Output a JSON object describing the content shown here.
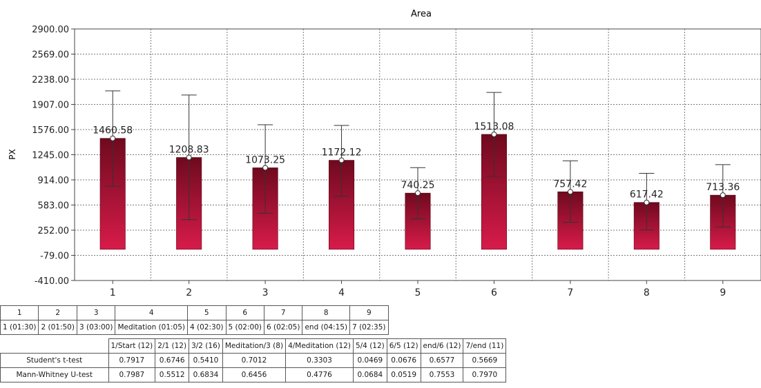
{
  "chart_data": {
    "type": "bar",
    "title": "Area",
    "ylabel": "PX",
    "xlabel": "",
    "categories": [
      "1",
      "2",
      "3",
      "4",
      "5",
      "6",
      "7",
      "8",
      "9"
    ],
    "values": [
      1460.58,
      1208.83,
      1073.25,
      1172.12,
      740.25,
      1513.08,
      757.42,
      617.42,
      713.36
    ],
    "error_low": [
      830,
      390,
      475,
      700,
      400,
      960,
      355,
      255,
      295
    ],
    "error_high": [
      2085,
      2030,
      1640,
      1630,
      1075,
      2065,
      1165,
      1000,
      1115
    ],
    "ylim": [
      -410,
      2900
    ],
    "yticks": [
      "2900.00",
      "2569.00",
      "2238.00",
      "1907.00",
      "1576.00",
      "1245.00",
      "914.00",
      "583.00",
      "252.00",
      "-79.00",
      "-410.00"
    ],
    "grid": true,
    "bar_color_top": "#6e0a1e",
    "bar_color_bottom": "#d81b4a"
  },
  "mapping_table": {
    "headers": [
      "1",
      "2",
      "3",
      "4",
      "5",
      "6",
      "7",
      "8",
      "9"
    ],
    "labels": [
      "1 (01:30)",
      "2 (01:50)",
      "3 (03:00)",
      "Meditation (01:05)",
      "4 (02:30)",
      "5 (02:00)",
      "6 (02:05)",
      "end (04:15)",
      "7 (02:35)"
    ]
  },
  "test_table": {
    "columns": [
      "1/Start (12)",
      "2/1 (12)",
      "3/2 (16)",
      "Meditation/3 (8)",
      "4/Meditation (12)",
      "5/4 (12)",
      "6/5 (12)",
      "end/6 (12)",
      "7/end (11)"
    ],
    "rows": [
      {
        "name": "Student's t-test",
        "values": [
          "0.7917",
          "0.6746",
          "0.5410",
          "0.7012",
          "0.3303",
          "0.0469",
          "0.0676",
          "0.6577",
          "0.5669"
        ]
      },
      {
        "name": "Mann-Whitney U-test",
        "values": [
          "0.7987",
          "0.5512",
          "0.6834",
          "0.6456",
          "0.4776",
          "0.0684",
          "0.0519",
          "0.7553",
          "0.7970"
        ]
      }
    ]
  }
}
